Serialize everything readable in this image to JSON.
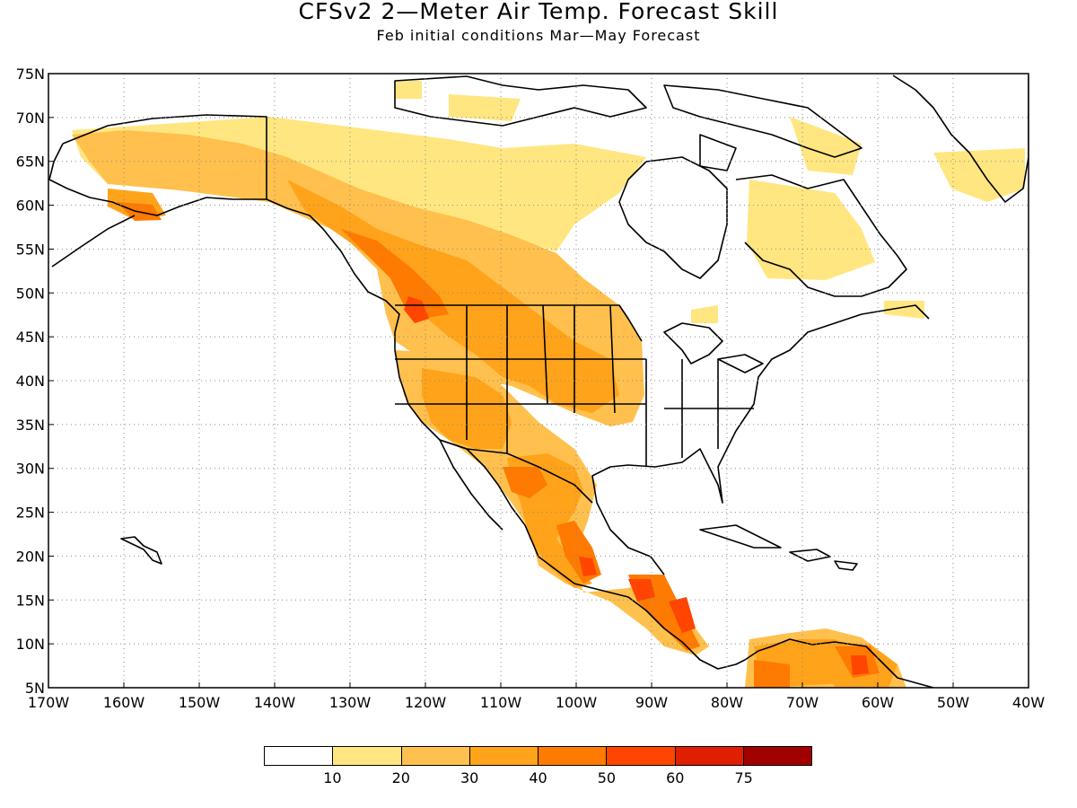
{
  "title": "CFSv2 2—Meter Air Temp. Forecast Skill",
  "subtitle": "Feb initial conditions   Mar—May Forecast",
  "map": {
    "lat_range": [
      5,
      75
    ],
    "lon_range": [
      -170,
      -40
    ],
    "lat_ticks": [
      "75N",
      "70N",
      "65N",
      "60N",
      "55N",
      "50N",
      "45N",
      "40N",
      "35N",
      "30N",
      "25N",
      "20N",
      "15N",
      "10N",
      "5N"
    ],
    "lon_ticks": [
      "170W",
      "160W",
      "150W",
      "140W",
      "130W",
      "120W",
      "110W",
      "100W",
      "90W",
      "80W",
      "70W",
      "60W",
      "50W",
      "40W"
    ],
    "grid": "dotted"
  },
  "legend": {
    "colors": [
      "#ffffff",
      "#ffe680",
      "#ffc04d",
      "#ffa31a",
      "#ff7a00",
      "#ff4500",
      "#e01e00",
      "#a00000"
    ],
    "labels": [
      "10",
      "20",
      "30",
      "40",
      "50",
      "60",
      "75"
    ]
  }
}
